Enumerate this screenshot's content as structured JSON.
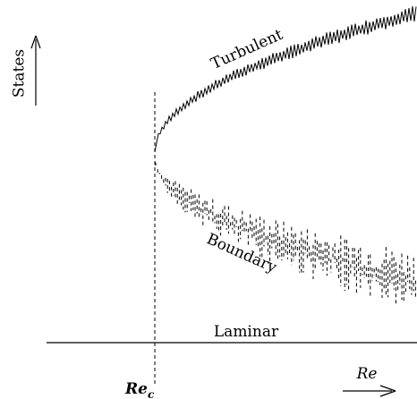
{
  "labels": {
    "y_axis": "States",
    "turbulent": "Turbulent",
    "boundary": "Boundary",
    "laminar": "Laminar",
    "critical": {
      "main": "Re",
      "sub": "c"
    },
    "x_axis": "Re"
  }
}
